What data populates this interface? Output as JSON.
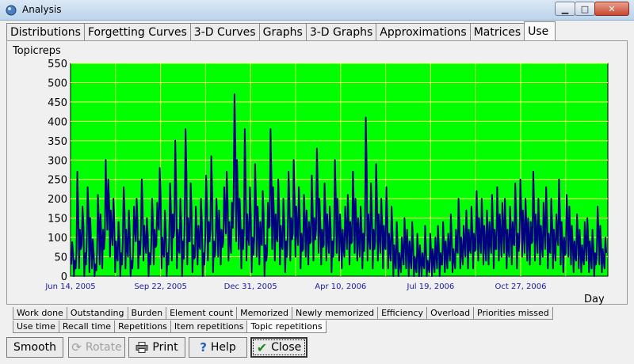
{
  "window": {
    "title": "Analysis"
  },
  "tabs": [
    {
      "label": "Distributions"
    },
    {
      "label": "Forgetting Curves"
    },
    {
      "label": "3-D Curves"
    },
    {
      "label": "Graphs"
    },
    {
      "label": "3-D Graphs"
    },
    {
      "label": "Approximations"
    },
    {
      "label": "Matrices"
    },
    {
      "label": "Use",
      "active": true
    }
  ],
  "chart_data": {
    "type": "line",
    "ylabel": "Topicreps",
    "xlabel": "Day",
    "ylim": [
      0,
      550
    ],
    "yticks": [
      0,
      50,
      100,
      150,
      200,
      250,
      300,
      350,
      400,
      450,
      500,
      550
    ],
    "xtick_labels": [
      "Jun 14, 2005",
      "Sep 22, 2005",
      "Dec 31, 2005",
      "Apr 10, 2006",
      "Jul 19, 2006",
      "Oct 27, 2006"
    ],
    "x_start": "Jun 14, 2005",
    "x_end": "Jan 31, 2007",
    "grid": true,
    "background": "#00ff00",
    "line_color": "#000080",
    "grid_color": "#ffff66",
    "series": [
      {
        "values": [
          88,
          40,
          270,
          120,
          180,
          60,
          230,
          150,
          95,
          30,
          210,
          160,
          120,
          300,
          250,
          170,
          200,
          90,
          140,
          60,
          230,
          120,
          170,
          40,
          180,
          200,
          90,
          250,
          130,
          150,
          60,
          200,
          120,
          190,
          280,
          100,
          170,
          60,
          240,
          160,
          350,
          120,
          200,
          90,
          380,
          150,
          240,
          80,
          180,
          130,
          200,
          60,
          260,
          140,
          310,
          90,
          200,
          170,
          120,
          230,
          270,
          140,
          190,
          470,
          300,
          200,
          120,
          380,
          160,
          230,
          100,
          290,
          180,
          140,
          220,
          80,
          190,
          380,
          230,
          160,
          250,
          130,
          200,
          90,
          270,
          150,
          300,
          180,
          230,
          110,
          210,
          170,
          140,
          260,
          150,
          330,
          200,
          120,
          240,
          160,
          180,
          90,
          300,
          200,
          160,
          120,
          180,
          210,
          140,
          270,
          200,
          150,
          180,
          110,
          410,
          160,
          240,
          120,
          290,
          160,
          200,
          130,
          230,
          110,
          180,
          80,
          140,
          60,
          100,
          150,
          120,
          90,
          140,
          50,
          110,
          80,
          60,
          130,
          40,
          110,
          70,
          100,
          130,
          60,
          140,
          90,
          110,
          160,
          70,
          120,
          200,
          100,
          130,
          170,
          120,
          180,
          110,
          220,
          150,
          200,
          130,
          170,
          140,
          210,
          120,
          230,
          160,
          190,
          200,
          120,
          180,
          140,
          240,
          110,
          250,
          170,
          200,
          150,
          140,
          270,
          160,
          200,
          130,
          190,
          230,
          110,
          200,
          120,
          160,
          250,
          140,
          100,
          210,
          180,
          130,
          90,
          160,
          120,
          80,
          140,
          150,
          90,
          120,
          60,
          180,
          130,
          70,
          100
        ],
        "min_values": [
          30,
          0,
          60,
          20,
          80,
          0,
          90,
          10,
          20,
          0,
          60,
          30,
          20,
          100,
          120,
          50,
          80,
          10,
          40,
          0,
          90,
          20,
          50,
          0,
          60,
          90,
          20,
          110,
          40,
          60,
          0,
          80,
          30,
          80,
          120,
          20,
          50,
          0,
          90,
          40,
          120,
          20,
          60,
          0,
          140,
          30,
          90,
          10,
          50,
          30,
          70,
          0,
          100,
          40,
          120,
          10,
          70,
          50,
          30,
          90,
          110,
          40,
          60,
          200,
          90,
          70,
          20,
          120,
          40,
          80,
          10,
          100,
          50,
          30,
          80,
          0,
          60,
          130,
          70,
          40,
          90,
          30,
          70,
          10,
          100,
          40,
          110,
          50,
          80,
          20,
          70,
          50,
          30,
          90,
          40,
          120,
          60,
          30,
          80,
          40,
          60,
          10,
          100,
          60,
          40,
          20,
          50,
          70,
          30,
          90,
          60,
          40,
          50,
          20,
          120,
          40,
          70,
          20,
          90,
          40,
          60,
          20,
          70,
          20,
          40,
          0,
          20,
          0,
          10,
          30,
          20,
          0,
          20,
          0,
          10,
          0,
          0,
          20,
          0,
          10,
          0,
          10,
          20,
          0,
          30,
          10,
          20,
          40,
          10,
          20,
          60,
          20,
          30,
          50,
          20,
          60,
          20,
          70,
          40,
          60,
          30,
          40,
          30,
          60,
          20,
          70,
          40,
          50,
          60,
          20,
          50,
          30,
          80,
          20,
          90,
          50,
          60,
          40,
          30,
          90,
          40,
          60,
          30,
          50,
          70,
          20,
          60,
          20,
          40,
          80,
          30,
          10,
          60,
          50,
          30,
          10,
          40,
          20,
          10,
          30,
          40,
          10,
          20,
          0,
          50,
          30,
          10,
          20
        ]
      }
    ]
  },
  "subtabs_row1": [
    {
      "label": "Work done"
    },
    {
      "label": "Outstanding"
    },
    {
      "label": "Burden"
    },
    {
      "label": "Element count"
    },
    {
      "label": "Memorized"
    },
    {
      "label": "Newly memorized"
    },
    {
      "label": "Efficiency"
    },
    {
      "label": "Overload"
    },
    {
      "label": "Priorities missed"
    }
  ],
  "subtabs_row2": [
    {
      "label": "Use time"
    },
    {
      "label": "Recall time"
    },
    {
      "label": "Repetitions"
    },
    {
      "label": "Item repetitions"
    },
    {
      "label": "Topic repetitions",
      "active": true
    }
  ],
  "buttons": {
    "smooth": "Smooth",
    "rotate": "Rotate",
    "print": "Print",
    "help": "Help",
    "close": "Close"
  }
}
